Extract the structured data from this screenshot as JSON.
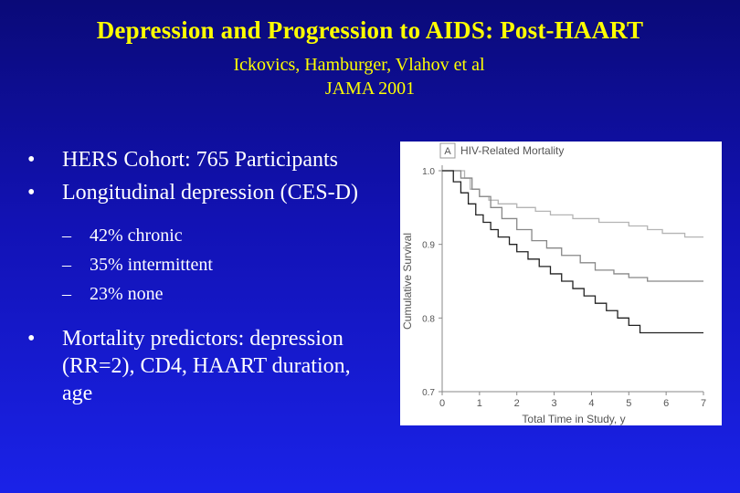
{
  "slide": {
    "title": "Depression and Progression to AIDS:  Post-HAART",
    "subtitle_line1": "Ickovics, Hamburger, Vlahov et al",
    "subtitle_line2": "JAMA 2001"
  },
  "bullets": [
    {
      "marker": "•",
      "text": "HERS Cohort: 765 Participants"
    },
    {
      "marker": "•",
      "text": "Longitudinal depression (CES-D)"
    },
    {
      "marker": "•",
      "text": "Mortality predictors: depression (RR=2), CD4, HAART duration, age"
    }
  ],
  "sub_bullets": [
    {
      "marker": "–",
      "text": "42% chronic"
    },
    {
      "marker": "–",
      "text": "35% intermittent"
    },
    {
      "marker": "–",
      "text": "23% none"
    }
  ],
  "colors": {
    "title": "#ffff00",
    "text": "#ffffff",
    "bg_top": "#0a0a78",
    "bg_bottom": "#1a22e8"
  },
  "chart_data": {
    "type": "line",
    "step": true,
    "panel_label": "A",
    "title": "HIV-Related Mortality",
    "xlabel": "Total Time in Study, y",
    "ylabel": "Cumulative Survival",
    "xlim": [
      0,
      7
    ],
    "ylim": [
      0.7,
      1.0
    ],
    "x_ticks": [
      "0",
      "1",
      "2",
      "3",
      "4",
      "5",
      "6",
      "7"
    ],
    "y_ticks": [
      "0.7",
      "0.8",
      "0.9",
      "1.0"
    ],
    "series": [
      {
        "color": "#b4b4b4",
        "x": [
          0,
          0.6,
          0.75,
          1.0,
          1.25,
          1.5,
          2.0,
          2.5,
          2.9,
          3.5,
          4.2,
          5.0,
          5.5,
          5.9,
          6.5,
          7
        ],
        "y": [
          1.0,
          0.99,
          0.975,
          0.965,
          0.96,
          0.955,
          0.95,
          0.945,
          0.94,
          0.935,
          0.93,
          0.925,
          0.92,
          0.915,
          0.91,
          0.91
        ]
      },
      {
        "color": "#888888",
        "x": [
          0,
          0.5,
          0.8,
          1.0,
          1.3,
          1.6,
          2.0,
          2.4,
          2.8,
          3.2,
          3.7,
          4.1,
          4.6,
          5.0,
          5.5,
          6.0,
          7
        ],
        "y": [
          1.0,
          0.99,
          0.975,
          0.965,
          0.95,
          0.935,
          0.92,
          0.905,
          0.895,
          0.885,
          0.875,
          0.865,
          0.86,
          0.855,
          0.85,
          0.85,
          0.85
        ]
      },
      {
        "color": "#222222",
        "x": [
          0,
          0.3,
          0.5,
          0.7,
          0.9,
          1.1,
          1.3,
          1.5,
          1.8,
          2.0,
          2.3,
          2.6,
          2.9,
          3.2,
          3.5,
          3.8,
          4.1,
          4.4,
          4.7,
          5.0,
          5.3,
          6.0,
          7
        ],
        "y": [
          1.0,
          0.985,
          0.97,
          0.955,
          0.94,
          0.93,
          0.92,
          0.91,
          0.9,
          0.89,
          0.88,
          0.87,
          0.86,
          0.85,
          0.84,
          0.83,
          0.82,
          0.81,
          0.8,
          0.79,
          0.78,
          0.78,
          0.78
        ]
      }
    ]
  }
}
